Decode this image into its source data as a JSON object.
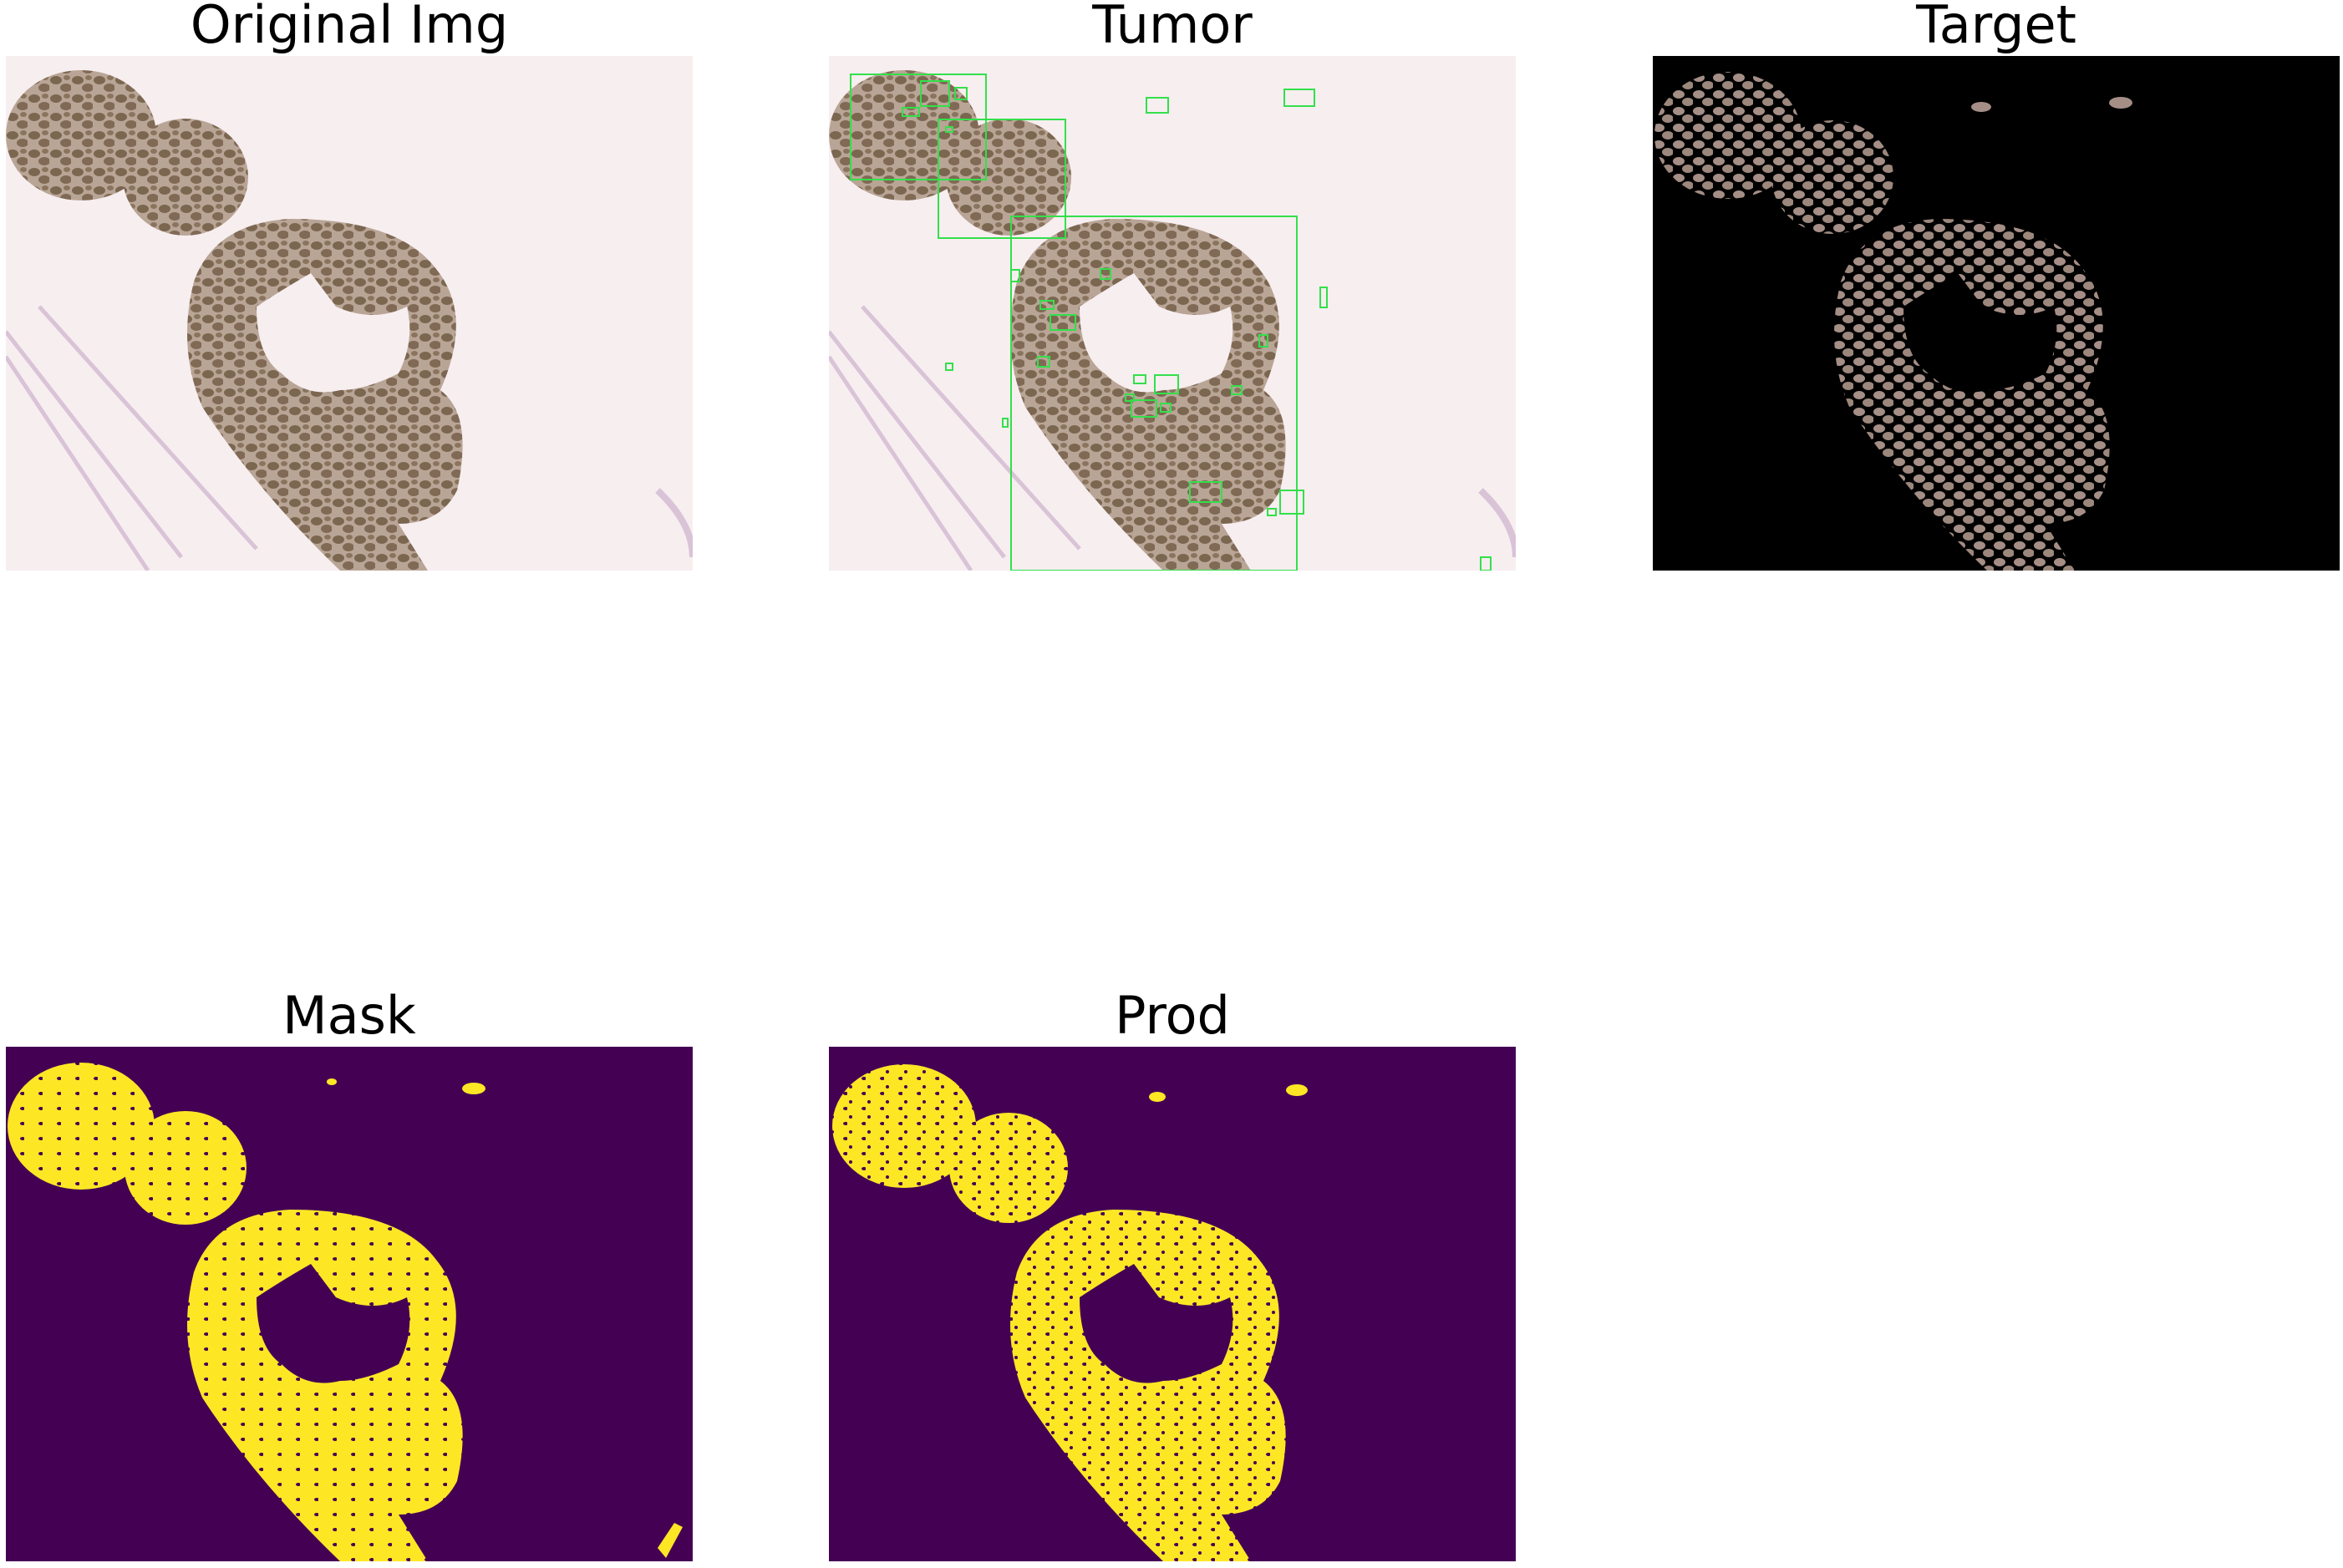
{
  "figure": {
    "panels": [
      {
        "id": "original",
        "title": "Original Img"
      },
      {
        "id": "tumor",
        "title": "Tumor"
      },
      {
        "id": "target",
        "title": "Target"
      },
      {
        "id": "mask",
        "title": "Mask"
      },
      {
        "id": "prod",
        "title": "Prod"
      }
    ]
  },
  "colors": {
    "tissue_bg": "#f7eef0",
    "stroma_fiber": "#d9c3d6",
    "nuclei": "#7b6650",
    "nuclei_light": "#9b8a78",
    "box": "#33e04a",
    "target_bg": "#000000",
    "target_cells": "#a48e86",
    "mask_bg": "#440154",
    "mask_fg": "#fde725"
  }
}
